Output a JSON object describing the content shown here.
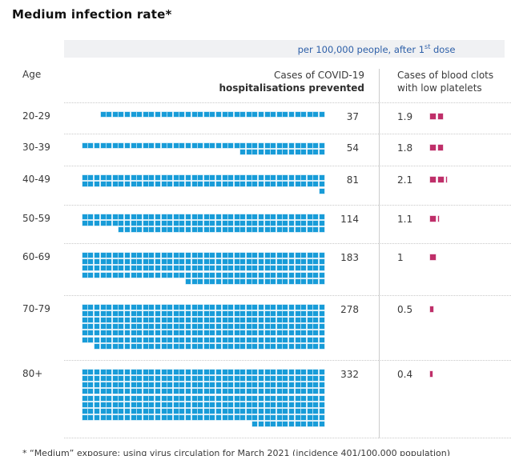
{
  "title": "Medium infection rate*",
  "band": {
    "prefix": "per 100,000 people, after 1",
    "sup": "st",
    "suffix": " dose"
  },
  "columns": {
    "age": "Age",
    "prevented_line1": "Cases of COVID-19",
    "prevented_line2": "hospitalisations prevented",
    "clots_line1": "Cases of blood clots",
    "clots_line2": "with low platelets"
  },
  "footnote": "* “Medium” exposure: using virus circulation for March 2021 (incidence 401/100,000 population)",
  "colors": {
    "hospitalisation_square": "#189cd8",
    "blood_clot_square": "#bf2f69",
    "band_background": "#f0f1f3",
    "band_text": "#2d5fa8",
    "divider": "#cccccc",
    "dotted_separator": "#c9c9c9"
  },
  "chart_data": {
    "type": "waffle-pictogram",
    "title": "Medium infection rate*",
    "unit": "per 100,000 people, after 1st dose",
    "squares_per_row": 40,
    "square_value": 1,
    "series": [
      {
        "name": "Cases of COVID-19 hospitalisations prevented",
        "color": "#189cd8"
      },
      {
        "name": "Cases of blood clots with low platelets",
        "color": "#bf2f69"
      }
    ],
    "rows": [
      {
        "age": "20-29",
        "hospitalisations_prevented": 37,
        "blood_clots": 1.9
      },
      {
        "age": "30-39",
        "hospitalisations_prevented": 54,
        "blood_clots": 1.8
      },
      {
        "age": "40-49",
        "hospitalisations_prevented": 81,
        "blood_clots": 2.1
      },
      {
        "age": "50-59",
        "hospitalisations_prevented": 114,
        "blood_clots": 1.1
      },
      {
        "age": "60-69",
        "hospitalisations_prevented": 183,
        "blood_clots": 1
      },
      {
        "age": "70-79",
        "hospitalisations_prevented": 278,
        "blood_clots": 0.5
      },
      {
        "age": "80+",
        "hospitalisations_prevented": 332,
        "blood_clots": 0.4
      }
    ]
  }
}
